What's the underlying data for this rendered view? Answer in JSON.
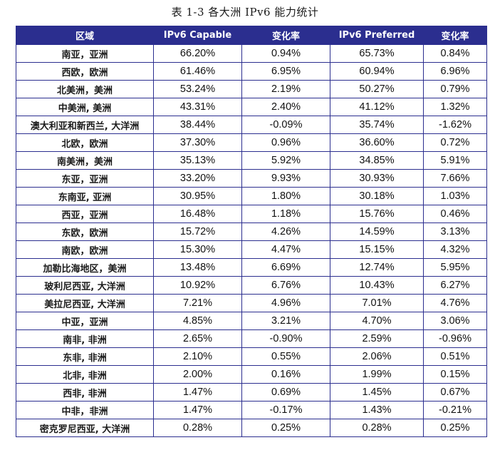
{
  "caption": "表 1-3 各大洲 IPv6 能力统计",
  "table": {
    "headers": [
      "区域",
      "IPv6 Capable",
      "变化率",
      "IPv6 Preferred",
      "变化率"
    ],
    "rows": [
      [
        "南亚，亚洲",
        "66.20%",
        "0.94%",
        "65.73%",
        "0.84%"
      ],
      [
        "西欧，欧洲",
        "61.46%",
        "6.95%",
        "60.94%",
        "6.96%"
      ],
      [
        "北美洲，美洲",
        "53.24%",
        "2.19%",
        "50.27%",
        "0.79%"
      ],
      [
        "中美洲, 美洲",
        "43.31%",
        "2.40%",
        "41.12%",
        "1.32%"
      ],
      [
        "澳大利亚和新西兰, 大洋洲",
        "38.44%",
        "-0.09%",
        "35.74%",
        "-1.62%"
      ],
      [
        "北欧，欧洲",
        "37.30%",
        "0.96%",
        "36.60%",
        "0.72%"
      ],
      [
        "南美洲，美洲",
        "35.13%",
        "5.92%",
        "34.85%",
        "5.91%"
      ],
      [
        "东亚，亚洲",
        "33.20%",
        "9.93%",
        "30.93%",
        "7.66%"
      ],
      [
        "东南亚, 亚洲",
        "30.95%",
        "1.80%",
        "30.18%",
        "1.03%"
      ],
      [
        "西亚，亚洲",
        "16.48%",
        "1.18%",
        "15.76%",
        "0.46%"
      ],
      [
        "东欧，欧洲",
        "15.72%",
        "4.26%",
        "14.59%",
        "3.13%"
      ],
      [
        "南欧，欧洲",
        "15.30%",
        "4.47%",
        "15.15%",
        "4.32%"
      ],
      [
        "加勒比海地区，美洲",
        "13.48%",
        "6.69%",
        "12.74%",
        "5.95%"
      ],
      [
        "玻利尼西亚, 大洋洲",
        "10.92%",
        "6.76%",
        "10.43%",
        "6.27%"
      ],
      [
        "美拉尼西亚, 大洋洲",
        "7.21%",
        "4.96%",
        "7.01%",
        "4.76%"
      ],
      [
        "中亚，亚洲",
        "4.85%",
        "3.21%",
        "4.70%",
        "3.06%"
      ],
      [
        "南非, 非洲",
        "2.65%",
        "-0.90%",
        "2.59%",
        "-0.96%"
      ],
      [
        "东非, 非洲",
        "2.10%",
        "0.55%",
        "2.06%",
        "0.51%"
      ],
      [
        "北非, 非洲",
        "2.00%",
        "0.16%",
        "1.99%",
        "0.15%"
      ],
      [
        "西非, 非洲",
        "1.47%",
        "0.69%",
        "1.45%",
        "0.67%"
      ],
      [
        "中非，非洲",
        "1.47%",
        "-0.17%",
        "1.43%",
        "-0.21%"
      ],
      [
        "密克罗尼西亚, 大洋洲",
        "0.28%",
        "0.25%",
        "0.28%",
        "0.25%"
      ]
    ]
  }
}
